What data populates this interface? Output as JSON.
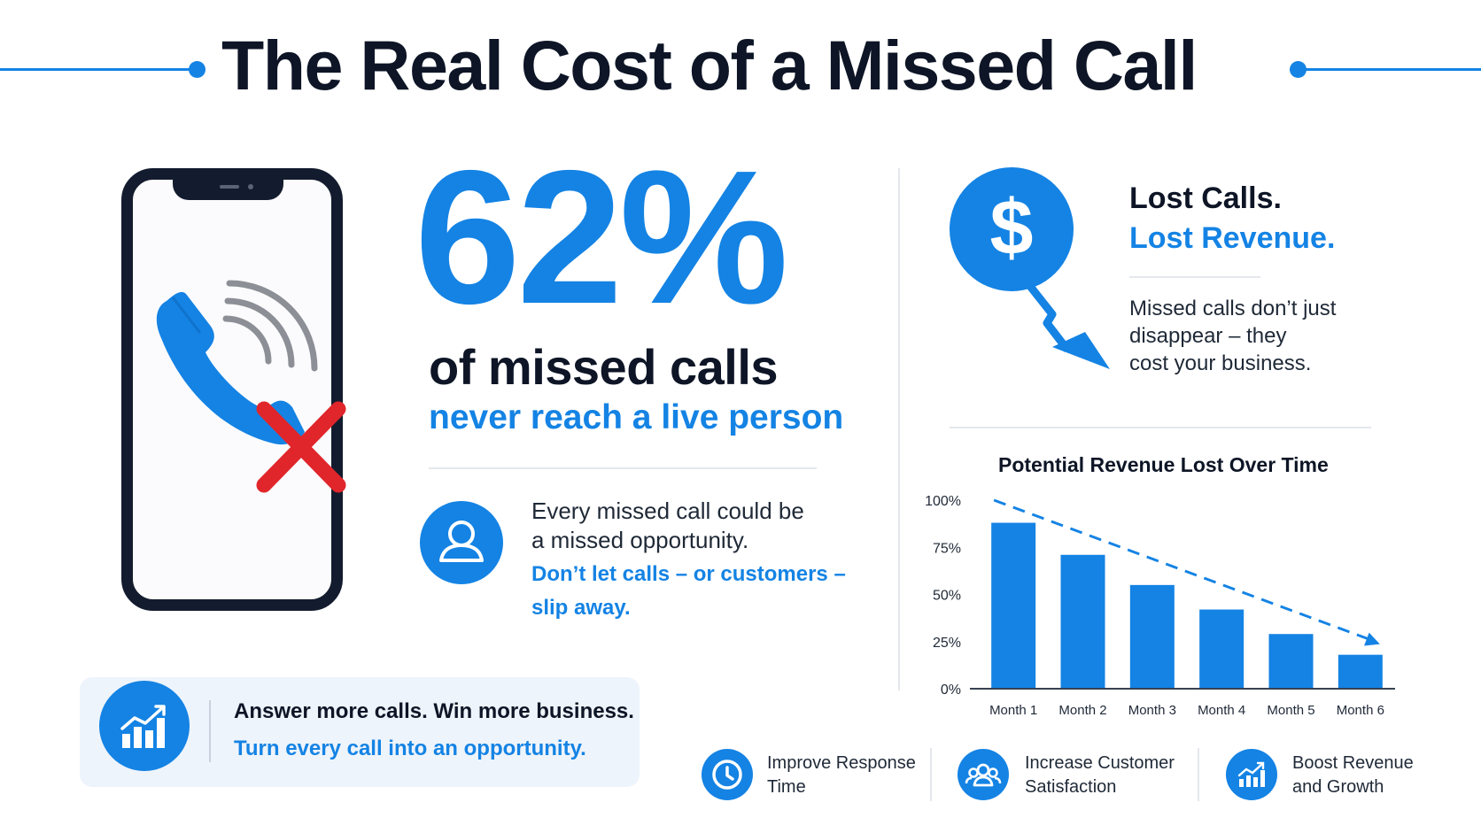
{
  "title": "The Real Cost of a Missed Call",
  "stat": {
    "value": "62%",
    "line1": "of missed calls",
    "line2": "never reach a live person"
  },
  "opportunity": {
    "line1": "Every missed call could be",
    "line2": "a missed opportunity.",
    "cta1": "Don’t let calls – or customers –",
    "cta2": "slip away."
  },
  "banner": {
    "line1": "Answer more calls. Win more business.",
    "line2": "Turn every call into an opportunity."
  },
  "lost": {
    "line1": "Lost Calls.",
    "line2": "Lost Revenue.",
    "desc1": "Missed calls don’t just",
    "desc2": "disappear – they",
    "desc3": "cost your business."
  },
  "chart_data": {
    "type": "bar",
    "title": "Potential Revenue Lost Over Time",
    "categories": [
      "Month 1",
      "Month 2",
      "Month 3",
      "Month 4",
      "Month 5",
      "Month 6"
    ],
    "values": [
      88,
      71,
      55,
      42,
      29,
      18
    ],
    "ylim": [
      0,
      100
    ],
    "yticks": [
      "0%",
      "25%",
      "50%",
      "75%",
      "100%"
    ],
    "trend_arrow": "dashed, decreasing",
    "color": "#1483e4"
  },
  "benefits": [
    {
      "icon": "clock-icon",
      "line1": "Improve Response",
      "line2": "Time"
    },
    {
      "icon": "users-icon",
      "line1": "Increase Customer",
      "line2": "Satisfaction"
    },
    {
      "icon": "growth-chart-icon",
      "line1": "Boost Revenue",
      "line2": "and Growth"
    }
  ],
  "colors": {
    "accent": "#1483e4",
    "dark": "#0d1526",
    "danger": "#e0262b"
  }
}
